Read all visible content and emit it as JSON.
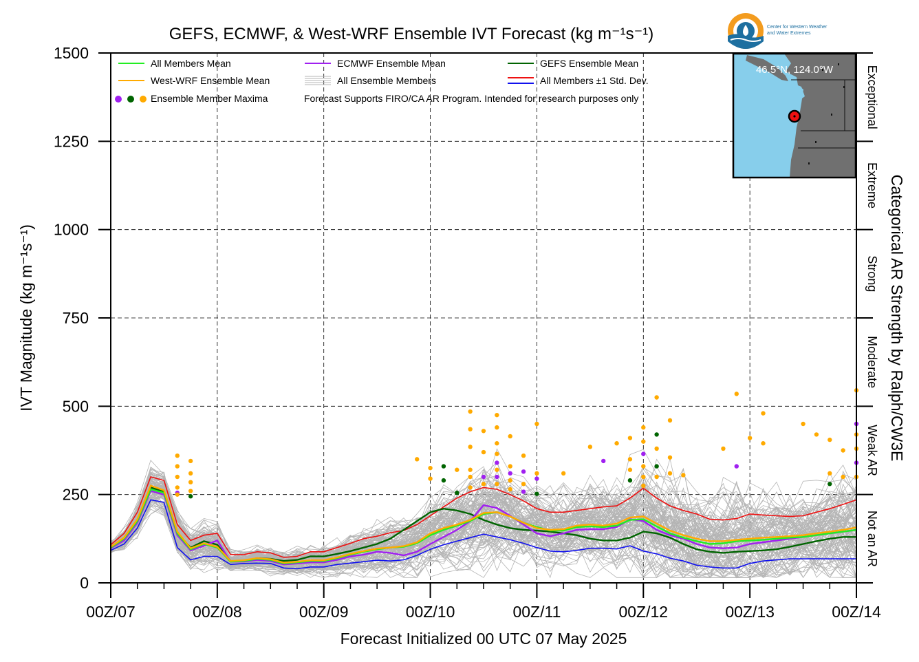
{
  "chart_data": {
    "type": "line",
    "title": "GEFS, ECMWF, & West-WRF Ensemble IVT Forecast (kg m⁻¹s⁻¹)",
    "xlabel": "Forecast Initialized 00 UTC 07 May 2025",
    "ylabel": "IVT Magnitude (kg m⁻¹s⁻¹)",
    "right_label": "Categorical AR Strength by Ralph/CW3E",
    "ylim": [
      0,
      1500
    ],
    "xlim": [
      0,
      168
    ],
    "x_units": "forecast hours from 00Z/07",
    "yticks": [
      0,
      250,
      500,
      750,
      1000,
      1250,
      1500
    ],
    "xticks": [
      {
        "x": 0,
        "label": "00Z/07"
      },
      {
        "x": 24,
        "label": "00Z/08"
      },
      {
        "x": 48,
        "label": "00Z/09"
      },
      {
        "x": 72,
        "label": "00Z/10"
      },
      {
        "x": 96,
        "label": "00Z/11"
      },
      {
        "x": 120,
        "label": "00Z/12"
      },
      {
        "x": 144,
        "label": "00Z/13"
      },
      {
        "x": 168,
        "label": "00Z/14"
      }
    ],
    "grid": true,
    "legend_position": "top-left",
    "categories_ar": [
      {
        "label": "Not an AR",
        "from": 0,
        "to": 250
      },
      {
        "label": "Weak AR",
        "from": 250,
        "to": 500
      },
      {
        "label": "Moderate",
        "from": 500,
        "to": 750
      },
      {
        "label": "Strong",
        "from": 750,
        "to": 1000
      },
      {
        "label": "Extreme",
        "from": 1000,
        "to": 1250
      },
      {
        "label": "Exceptional",
        "from": 1250,
        "to": 1500
      }
    ],
    "x": [
      0,
      3,
      6,
      9,
      12,
      15,
      18,
      21,
      24,
      27,
      30,
      33,
      36,
      39,
      42,
      45,
      48,
      51,
      54,
      57,
      60,
      63,
      66,
      69,
      72,
      75,
      78,
      81,
      84,
      87,
      90,
      93,
      96,
      99,
      102,
      105,
      108,
      111,
      114,
      117,
      120,
      123,
      126,
      129,
      132,
      135,
      138,
      141,
      144,
      147,
      150,
      153,
      156,
      159,
      162,
      165,
      168
    ],
    "series": [
      {
        "name": "All Members Mean",
        "color": "#22ee22",
        "values": [
          100,
          125,
          175,
          265,
          255,
          140,
          95,
          110,
          100,
          60,
          62,
          68,
          65,
          55,
          58,
          62,
          62,
          70,
          80,
          88,
          95,
          100,
          102,
          112,
          135,
          150,
          162,
          175,
          195,
          200,
          188,
          170,
          158,
          148,
          148,
          158,
          160,
          158,
          162,
          178,
          180,
          160,
          140,
          128,
          118,
          110,
          112,
          118,
          120,
          122,
          125,
          128,
          130,
          135,
          140,
          145,
          150
        ]
      },
      {
        "name": "West-WRF Ensemble Mean",
        "color": "#ffaa00",
        "values": [
          102,
          128,
          180,
          275,
          262,
          145,
          98,
          112,
          102,
          62,
          64,
          70,
          67,
          57,
          60,
          64,
          64,
          72,
          82,
          90,
          97,
          100,
          104,
          115,
          140,
          155,
          165,
          178,
          198,
          200,
          188,
          170,
          155,
          150,
          152,
          162,
          165,
          162,
          168,
          185,
          188,
          168,
          148,
          135,
          125,
          118,
          118,
          122,
          125,
          128,
          130,
          132,
          135,
          140,
          145,
          150,
          157
        ]
      },
      {
        "name": "ECMWF Ensemble Mean",
        "color": "#a020f0",
        "values": [
          98,
          120,
          170,
          260,
          250,
          135,
          92,
          105,
          120,
          60,
          60,
          65,
          62,
          52,
          55,
          58,
          58,
          65,
          75,
          80,
          88,
          85,
          78,
          88,
          110,
          130,
          150,
          175,
          220,
          212,
          190,
          165,
          140,
          132,
          140,
          150,
          152,
          152,
          158,
          180,
          175,
          150,
          135,
          125,
          110,
          100,
          98,
          100,
          110,
          115,
          120,
          125,
          130,
          135,
          140,
          145,
          150
        ]
      },
      {
        "name": "GEFS Ensemble Mean",
        "color": "#006400",
        "values": [
          100,
          125,
          175,
          270,
          258,
          140,
          100,
          118,
          108,
          62,
          62,
          70,
          68,
          62,
          65,
          75,
          75,
          82,
          90,
          100,
          110,
          125,
          150,
          175,
          200,
          210,
          205,
          195,
          178,
          165,
          155,
          150,
          148,
          145,
          140,
          135,
          125,
          120,
          120,
          128,
          145,
          140,
          128,
          110,
          95,
          88,
          85,
          88,
          90,
          92,
          95,
          102,
          110,
          118,
          125,
          130,
          130
        ]
      },
      {
        "name": "All Members +1 Std. Dev.",
        "color": "#ee1111",
        "values": [
          108,
          140,
          200,
          300,
          290,
          165,
          120,
          135,
          140,
          80,
          80,
          88,
          85,
          72,
          75,
          88,
          88,
          100,
          112,
          125,
          132,
          142,
          148,
          165,
          190,
          215,
          240,
          258,
          270,
          265,
          250,
          232,
          210,
          200,
          200,
          205,
          210,
          215,
          218,
          240,
          268,
          240,
          218,
          205,
          195,
          180,
          178,
          182,
          195,
          192,
          190,
          188,
          190,
          200,
          210,
          222,
          235
        ]
      },
      {
        "name": "All Members -1 Std. Dev.",
        "color": "#1111ee",
        "values": [
          92,
          110,
          155,
          235,
          228,
          100,
          65,
          75,
          75,
          52,
          55,
          56,
          55,
          42,
          40,
          45,
          45,
          52,
          56,
          60,
          64,
          62,
          65,
          78,
          95,
          108,
          118,
          128,
          138,
          130,
          122,
          112,
          100,
          90,
          88,
          92,
          98,
          98,
          96,
          105,
          90,
          82,
          70,
          62,
          50,
          45,
          42,
          42,
          55,
          62,
          65,
          68,
          68,
          68,
          68,
          68,
          68
        ]
      }
    ],
    "ensemble_members_label": "All Ensemble Members",
    "ensemble_members_color": "#b4b4b4",
    "maxima": {
      "label": "Ensemble Member Maxima",
      "colors": {
        "ECMWF": "#a020f0",
        "GEFS": "#006400",
        "West-WRF": "#ffaa00"
      },
      "points": [
        {
          "x": 15,
          "y": 360,
          "m": "West-WRF"
        },
        {
          "x": 15,
          "y": 330,
          "m": "West-WRF"
        },
        {
          "x": 15,
          "y": 300,
          "m": "West-WRF"
        },
        {
          "x": 15,
          "y": 270,
          "m": "West-WRF"
        },
        {
          "x": 15,
          "y": 255,
          "m": "ECMWF"
        },
        {
          "x": 15,
          "y": 250,
          "m": "West-WRF"
        },
        {
          "x": 18,
          "y": 345,
          "m": "West-WRF"
        },
        {
          "x": 18,
          "y": 310,
          "m": "West-WRF"
        },
        {
          "x": 18,
          "y": 285,
          "m": "West-WRF"
        },
        {
          "x": 18,
          "y": 260,
          "m": "West-WRF"
        },
        {
          "x": 18,
          "y": 245,
          "m": "GEFS"
        },
        {
          "x": 69,
          "y": 350,
          "m": "West-WRF"
        },
        {
          "x": 72,
          "y": 325,
          "m": "West-WRF"
        },
        {
          "x": 72,
          "y": 295,
          "m": "West-WRF"
        },
        {
          "x": 75,
          "y": 330,
          "m": "GEFS"
        },
        {
          "x": 75,
          "y": 290,
          "m": "GEFS"
        },
        {
          "x": 78,
          "y": 320,
          "m": "West-WRF"
        },
        {
          "x": 78,
          "y": 255,
          "m": "GEFS"
        },
        {
          "x": 81,
          "y": 485,
          "m": "West-WRF"
        },
        {
          "x": 81,
          "y": 435,
          "m": "West-WRF"
        },
        {
          "x": 81,
          "y": 385,
          "m": "West-WRF"
        },
        {
          "x": 81,
          "y": 320,
          "m": "West-WRF"
        },
        {
          "x": 81,
          "y": 300,
          "m": "West-WRF"
        },
        {
          "x": 81,
          "y": 270,
          "m": "West-WRF"
        },
        {
          "x": 84,
          "y": 430,
          "m": "West-WRF"
        },
        {
          "x": 84,
          "y": 370,
          "m": "West-WRF"
        },
        {
          "x": 84,
          "y": 300,
          "m": "ECMWF"
        },
        {
          "x": 84,
          "y": 280,
          "m": "West-WRF"
        },
        {
          "x": 87,
          "y": 475,
          "m": "West-WRF"
        },
        {
          "x": 87,
          "y": 440,
          "m": "West-WRF"
        },
        {
          "x": 87,
          "y": 395,
          "m": "West-WRF"
        },
        {
          "x": 87,
          "y": 365,
          "m": "West-WRF"
        },
        {
          "x": 87,
          "y": 340,
          "m": "ECMWF"
        },
        {
          "x": 87,
          "y": 320,
          "m": "West-WRF"
        },
        {
          "x": 87,
          "y": 300,
          "m": "ECMWF"
        },
        {
          "x": 87,
          "y": 280,
          "m": "West-WRF"
        },
        {
          "x": 90,
          "y": 415,
          "m": "West-WRF"
        },
        {
          "x": 90,
          "y": 330,
          "m": "West-WRF"
        },
        {
          "x": 90,
          "y": 310,
          "m": "ECMWF"
        },
        {
          "x": 90,
          "y": 290,
          "m": "West-WRF"
        },
        {
          "x": 90,
          "y": 265,
          "m": "West-WRF"
        },
        {
          "x": 93,
          "y": 360,
          "m": "West-WRF"
        },
        {
          "x": 93,
          "y": 315,
          "m": "ECMWF"
        },
        {
          "x": 93,
          "y": 280,
          "m": "West-WRF"
        },
        {
          "x": 93,
          "y": 258,
          "m": "ECMWF"
        },
        {
          "x": 96,
          "y": 450,
          "m": "West-WRF"
        },
        {
          "x": 96,
          "y": 310,
          "m": "West-WRF"
        },
        {
          "x": 96,
          "y": 295,
          "m": "ECMWF"
        },
        {
          "x": 96,
          "y": 252,
          "m": "GEFS"
        },
        {
          "x": 102,
          "y": 310,
          "m": "West-WRF"
        },
        {
          "x": 108,
          "y": 385,
          "m": "West-WRF"
        },
        {
          "x": 111,
          "y": 345,
          "m": "ECMWF"
        },
        {
          "x": 114,
          "y": 395,
          "m": "West-WRF"
        },
        {
          "x": 117,
          "y": 410,
          "m": "West-WRF"
        },
        {
          "x": 117,
          "y": 350,
          "m": "West-WRF"
        },
        {
          "x": 117,
          "y": 320,
          "m": "West-WRF"
        },
        {
          "x": 117,
          "y": 290,
          "m": "GEFS"
        },
        {
          "x": 120,
          "y": 440,
          "m": "West-WRF"
        },
        {
          "x": 120,
          "y": 400,
          "m": "West-WRF"
        },
        {
          "x": 120,
          "y": 365,
          "m": "ECMWF"
        },
        {
          "x": 120,
          "y": 330,
          "m": "West-WRF"
        },
        {
          "x": 120,
          "y": 300,
          "m": "West-WRF"
        },
        {
          "x": 120,
          "y": 275,
          "m": "West-WRF"
        },
        {
          "x": 123,
          "y": 525,
          "m": "West-WRF"
        },
        {
          "x": 123,
          "y": 420,
          "m": "GEFS"
        },
        {
          "x": 123,
          "y": 380,
          "m": "West-WRF"
        },
        {
          "x": 123,
          "y": 330,
          "m": "GEFS"
        },
        {
          "x": 123,
          "y": 300,
          "m": "West-WRF"
        },
        {
          "x": 126,
          "y": 460,
          "m": "West-WRF"
        },
        {
          "x": 126,
          "y": 355,
          "m": "West-WRF"
        },
        {
          "x": 126,
          "y": 310,
          "m": "West-WRF"
        },
        {
          "x": 129,
          "y": 305,
          "m": "West-WRF"
        },
        {
          "x": 138,
          "y": 380,
          "m": "West-WRF"
        },
        {
          "x": 141,
          "y": 535,
          "m": "West-WRF"
        },
        {
          "x": 141,
          "y": 330,
          "m": "ECMWF"
        },
        {
          "x": 144,
          "y": 410,
          "m": "West-WRF"
        },
        {
          "x": 147,
          "y": 480,
          "m": "West-WRF"
        },
        {
          "x": 147,
          "y": 395,
          "m": "West-WRF"
        },
        {
          "x": 156,
          "y": 450,
          "m": "West-WRF"
        },
        {
          "x": 159,
          "y": 420,
          "m": "West-WRF"
        },
        {
          "x": 162,
          "y": 405,
          "m": "West-WRF"
        },
        {
          "x": 162,
          "y": 310,
          "m": "West-WRF"
        },
        {
          "x": 162,
          "y": 280,
          "m": "GEFS"
        },
        {
          "x": 165,
          "y": 375,
          "m": "West-WRF"
        },
        {
          "x": 165,
          "y": 300,
          "m": "West-WRF"
        },
        {
          "x": 168,
          "y": 545,
          "m": "West-WRF"
        },
        {
          "x": 168,
          "y": 450,
          "m": "ECMWF"
        },
        {
          "x": 168,
          "y": 420,
          "m": "West-WRF"
        },
        {
          "x": 168,
          "y": 380,
          "m": "West-WRF"
        },
        {
          "x": 168,
          "y": 340,
          "m": "ECMWF"
        },
        {
          "x": 168,
          "y": 300,
          "m": "West-WRF"
        }
      ]
    },
    "legend_std_label": "All Members ±1 Std. Dev.",
    "note": "Forecast Supports FIRO/CA AR Program. Intended for research purposes only",
    "inset": {
      "location_label": "46.5°N, 124.0°W",
      "ocean_color": "#87ceeb",
      "land_color": "#707070",
      "marker_color": "#ee1111"
    },
    "logo": {
      "line1": "Center for Western Weather",
      "line2": "and Water Extremes"
    }
  }
}
